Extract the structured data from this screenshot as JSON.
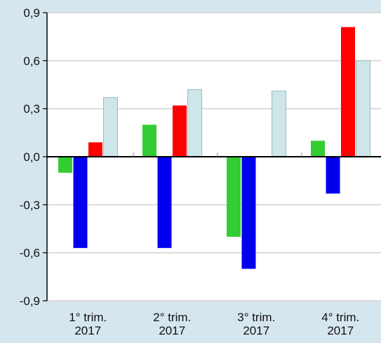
{
  "chart_data": {
    "type": "bar",
    "categories": [
      [
        "1° trim.",
        "2017"
      ],
      [
        "2° trim.",
        "2017"
      ],
      [
        "3° trim.",
        "2017"
      ],
      [
        "4° trim.",
        "2017"
      ]
    ],
    "series": [
      {
        "color": "#33cc33",
        "values": [
          -0.1,
          0.2,
          -0.5,
          0.1
        ]
      },
      {
        "color": "#0000ee",
        "values": [
          -0.57,
          -0.57,
          -0.7,
          -0.23
        ]
      },
      {
        "color": "#ff0000",
        "values": [
          0.09,
          0.32,
          0.0,
          0.81
        ]
      },
      {
        "color": "#cde6e9",
        "values": [
          0.37,
          0.42,
          0.41,
          0.6
        ]
      }
    ],
    "yticks": [
      "0,9",
      "0,6",
      "0,3",
      "0,0",
      "-0,3",
      "-0,6",
      "-0,9"
    ],
    "ylim": [
      -0.9,
      0.9
    ],
    "grid": true,
    "title": "",
    "xlabel": "",
    "ylabel": ""
  }
}
